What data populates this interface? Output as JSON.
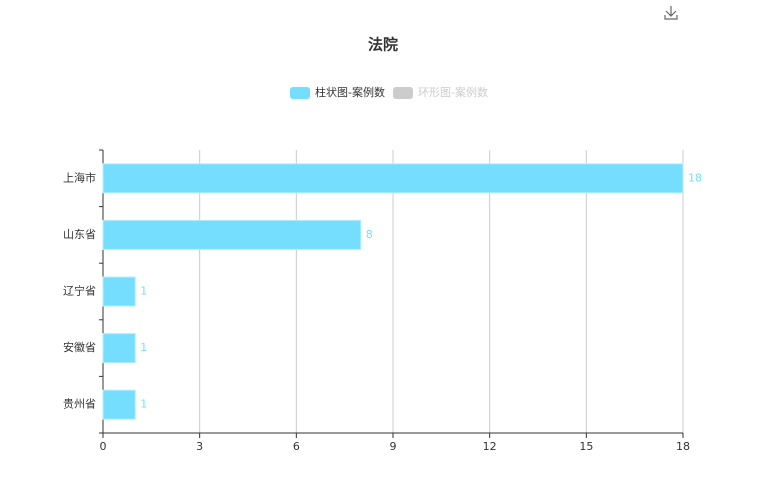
{
  "chart_data": {
    "type": "hbar",
    "title": "法院",
    "legend": [
      {
        "name": "柱状图-案例数",
        "color": "#75deff",
        "active": true
      },
      {
        "name": "环形图-案例数",
        "color": "#cccccc",
        "active": false
      }
    ],
    "categories": [
      "上海市",
      "山东省",
      "辽宁省",
      "安徽省",
      "贵州省"
    ],
    "values": [
      18,
      8,
      1,
      1,
      1
    ],
    "color": "#75deff",
    "xlim": [
      0,
      18
    ],
    "xticks": [
      0,
      3,
      6,
      9,
      12,
      15,
      18
    ],
    "grid": true
  }
}
